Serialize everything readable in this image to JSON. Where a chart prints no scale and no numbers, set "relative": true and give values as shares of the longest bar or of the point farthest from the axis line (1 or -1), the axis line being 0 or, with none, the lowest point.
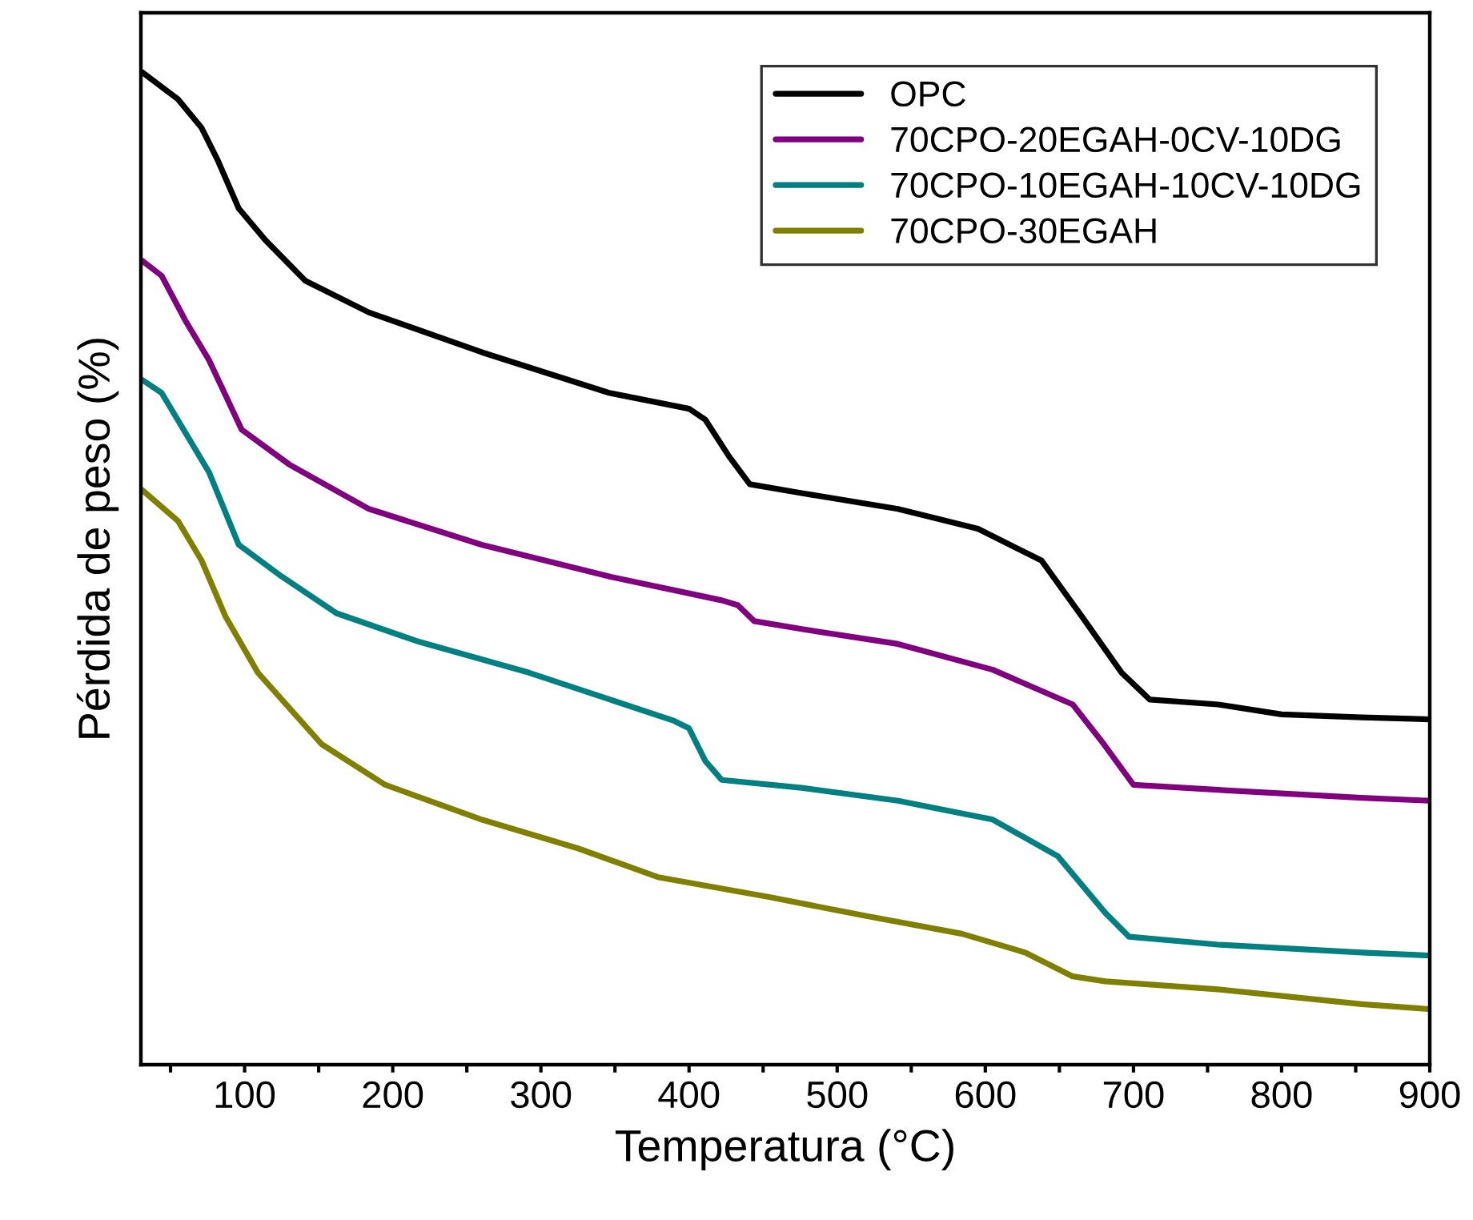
{
  "chart_data": {
    "type": "line",
    "relative": true,
    "xlabel": "Temperatura (°C)",
    "ylabel": "Pérdida de peso (%)",
    "xlim": [
      30,
      900
    ],
    "xticks": [
      {
        "value": 50,
        "label": null
      },
      100,
      {
        "value": 150,
        "label": null
      },
      200,
      {
        "value": 250,
        "label": null
      },
      300,
      {
        "value": 350,
        "label": null
      },
      400,
      {
        "value": 450,
        "label": null
      },
      500,
      {
        "value": 550,
        "label": null
      },
      600,
      {
        "value": 650,
        "label": null
      },
      700,
      {
        "value": 750,
        "label": null
      },
      800,
      {
        "value": 850,
        "label": null
      },
      900
    ],
    "tick_labels": "x",
    "legend": "top right",
    "grid": false,
    "marker": "none",
    "line_style": "solid",
    "series": [
      {
        "name": "OPC",
        "color": "#000000",
        "x": [
          31,
          55,
          71,
          82,
          96,
          114,
          141,
          184,
          260,
          346,
          400,
          411,
          427,
          441,
          476,
          541,
          595,
          638,
          665,
          692,
          711,
          757,
          800,
          854,
          900
        ],
        "values": [
          1.0,
          0.973,
          0.944,
          0.911,
          0.863,
          0.831,
          0.79,
          0.758,
          0.718,
          0.677,
          0.661,
          0.65,
          0.613,
          0.585,
          0.576,
          0.56,
          0.54,
          0.508,
          0.452,
          0.395,
          0.368,
          0.363,
          0.353,
          0.35,
          0.348
        ]
      },
      {
        "name": "70CPO-20EGAH-0CV-10DG",
        "color": "#800080",
        "x": [
          31,
          44,
          60,
          76,
          98,
          130,
          184,
          260,
          346,
          422,
          433,
          444,
          476,
          541,
          605,
          659,
          680,
          700,
          757,
          854,
          900
        ],
        "values": [
          0.81,
          0.795,
          0.75,
          0.71,
          0.64,
          0.605,
          0.56,
          0.524,
          0.492,
          0.468,
          0.463,
          0.447,
          0.439,
          0.424,
          0.398,
          0.363,
          0.323,
          0.282,
          0.277,
          0.269,
          0.266
        ]
      },
      {
        "name": "70CPO-10EGAH-10CV-10DG",
        "color": "#008080",
        "x": [
          31,
          44,
          60,
          76,
          96,
          125,
          162,
          216,
          292,
          389,
          400,
          411,
          422,
          476,
          541,
          605,
          649,
          681,
          697,
          757,
          854,
          900
        ],
        "values": [
          0.69,
          0.677,
          0.637,
          0.597,
          0.524,
          0.492,
          0.455,
          0.427,
          0.395,
          0.347,
          0.339,
          0.306,
          0.287,
          0.279,
          0.266,
          0.247,
          0.21,
          0.153,
          0.129,
          0.121,
          0.113,
          0.11
        ]
      },
      {
        "name": "70CPO-30EGAH",
        "color": "#808000",
        "x": [
          31,
          55,
          71,
          87,
          109,
          152,
          195,
          260,
          325,
          379,
          454,
          519,
          584,
          627,
          659,
          681,
          757,
          854,
          900
        ],
        "values": [
          0.579,
          0.548,
          0.508,
          0.452,
          0.395,
          0.323,
          0.282,
          0.247,
          0.218,
          0.189,
          0.169,
          0.15,
          0.132,
          0.113,
          0.089,
          0.084,
          0.076,
          0.061,
          0.056
        ]
      }
    ]
  }
}
